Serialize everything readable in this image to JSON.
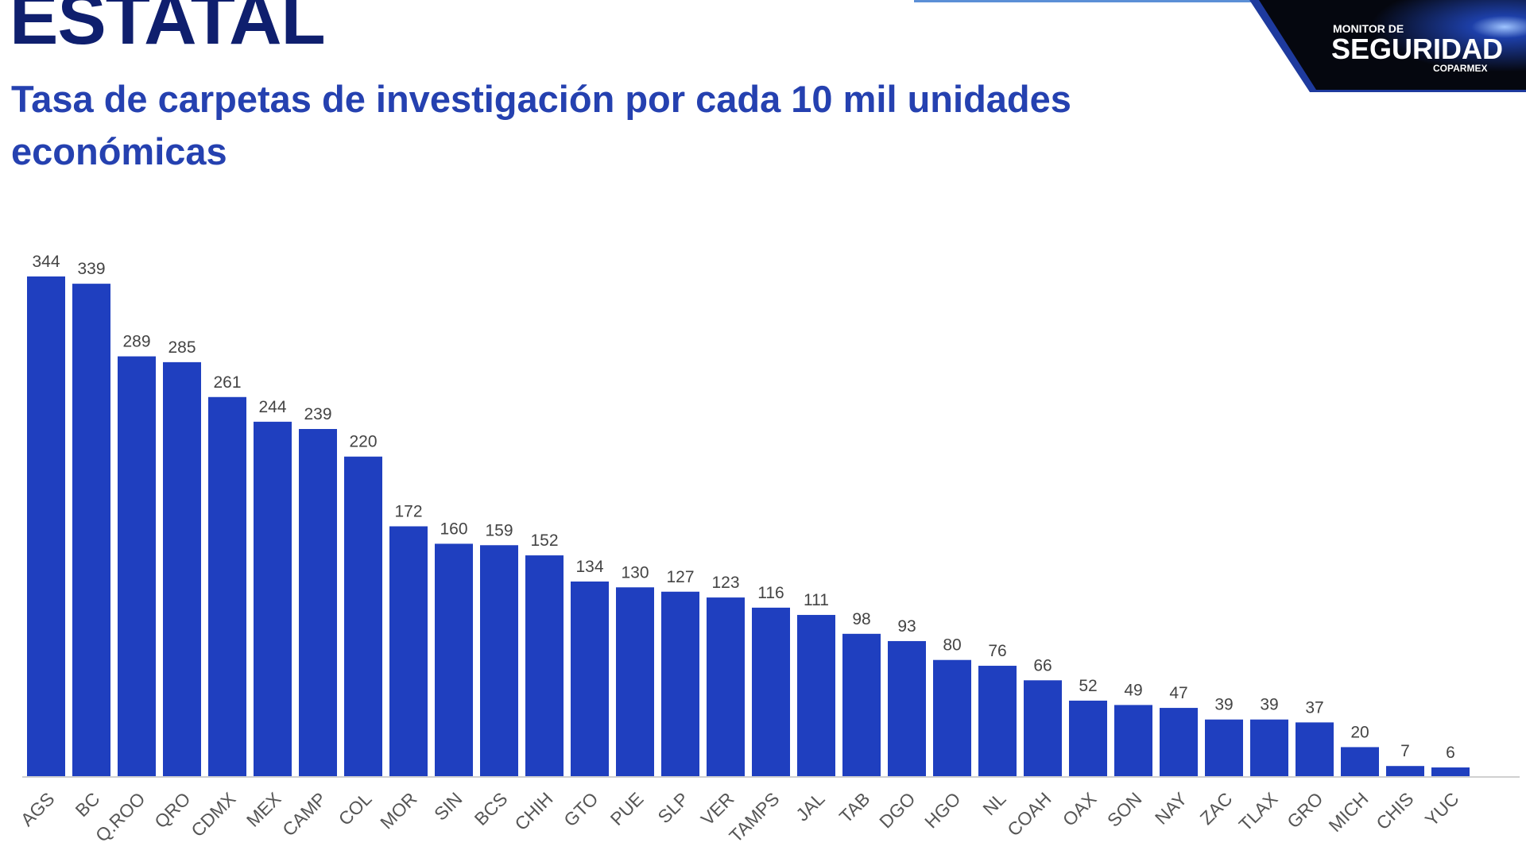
{
  "header": {
    "title": "ESTATAL",
    "subtitle": "Tasa de carpetas de investigación por cada 10 mil unidades económicas"
  },
  "logo": {
    "line1": "MONITOR DE",
    "line2": "SEGURIDAD",
    "line3": "COPARMEX"
  },
  "colors": {
    "bar": "#1f3fbf",
    "title": "#0f1f6e",
    "subtitle": "#2541b0",
    "label": "#555555"
  },
  "chart_data": {
    "type": "bar",
    "title": "Tasa de carpetas de investigación por cada 10 mil unidades económicas",
    "categories": [
      "AGS",
      "BC",
      "Q.ROO",
      "QRO",
      "CDMX",
      "MEX",
      "CAMP",
      "COL",
      "MOR",
      "SIN",
      "BCS",
      "CHIH",
      "GTO",
      "PUE",
      "SLP",
      "VER",
      "TAMPS",
      "JAL",
      "TAB",
      "DGO",
      "HGO",
      "NL",
      "COAH",
      "OAX",
      "SON",
      "NAY",
      "ZAC",
      "TLAX",
      "GRO",
      "MICH",
      "CHIS",
      "YUC"
    ],
    "values": [
      344,
      339,
      289,
      285,
      261,
      244,
      239,
      220,
      172,
      160,
      159,
      152,
      134,
      130,
      127,
      123,
      116,
      111,
      98,
      93,
      80,
      76,
      66,
      52,
      49,
      47,
      39,
      39,
      37,
      20,
      7,
      6
    ],
    "xlabel": "",
    "ylabel": "",
    "ylim": [
      0,
      344
    ],
    "grid": false,
    "data_labels": true
  }
}
